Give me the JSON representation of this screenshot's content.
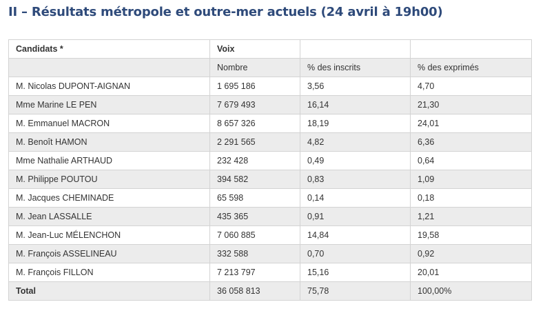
{
  "title": "II – Résultats métropole et outre-mer actuels (24 avril à 19h00)",
  "table": {
    "header": {
      "candidates": "Candidats *",
      "votes": "Voix",
      "number": "Nombre",
      "pct_registered": "% des inscrits",
      "pct_expressed": "% des exprimés"
    },
    "rows": [
      {
        "name": "M. Nicolas DUPONT-AIGNAN",
        "votes": "1 695 186",
        "pct_registered": "3,56",
        "pct_expressed": "4,70"
      },
      {
        "name": "Mme Marine LE PEN",
        "votes": "7 679 493",
        "pct_registered": "16,14",
        "pct_expressed": "21,30"
      },
      {
        "name": "M. Emmanuel MACRON",
        "votes": "8 657 326",
        "pct_registered": "18,19",
        "pct_expressed": "24,01"
      },
      {
        "name": "M. Benoît HAMON",
        "votes": "2 291 565",
        "pct_registered": "4,82",
        "pct_expressed": "6,36"
      },
      {
        "name": "Mme Nathalie ARTHAUD",
        "votes": "232 428",
        "pct_registered": "0,49",
        "pct_expressed": "0,64"
      },
      {
        "name": "M. Philippe POUTOU",
        "votes": "394 582",
        "pct_registered": "0,83",
        "pct_expressed": "1,09"
      },
      {
        "name": "M. Jacques CHEMINADE",
        "votes": "65 598",
        "pct_registered": "0,14",
        "pct_expressed": "0,18"
      },
      {
        "name": "M. Jean LASSALLE",
        "votes": "435 365",
        "pct_registered": "0,91",
        "pct_expressed": "1,21"
      },
      {
        "name": "M. Jean-Luc MÉLENCHON",
        "votes": "7 060 885",
        "pct_registered": "14,84",
        "pct_expressed": "19,58"
      },
      {
        "name": "M. François ASSELINEAU",
        "votes": "332 588",
        "pct_registered": "0,70",
        "pct_expressed": "0,92"
      },
      {
        "name": "M. François FILLON",
        "votes": "7 213 797",
        "pct_registered": "15,16",
        "pct_expressed": "20,01"
      }
    ],
    "total": {
      "name": "Total",
      "votes": "36 058 813",
      "pct_registered": "75,78",
      "pct_expressed": "100,00%"
    }
  }
}
